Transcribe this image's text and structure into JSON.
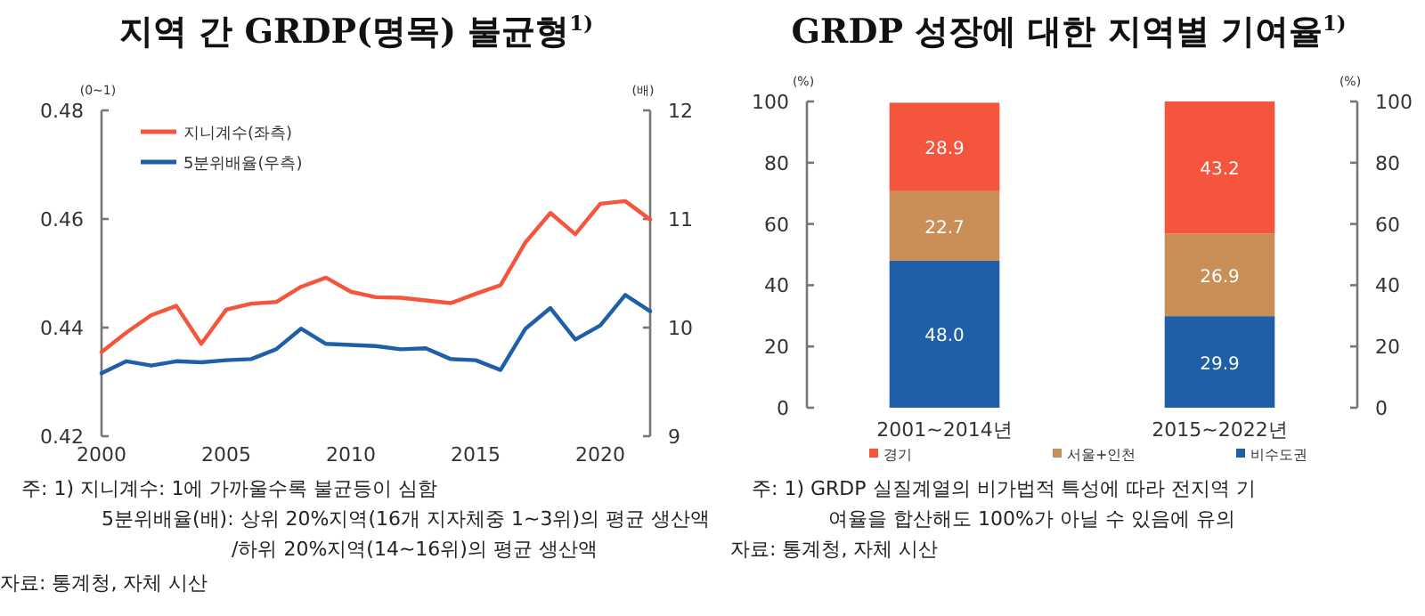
{
  "chart_data": [
    {
      "type": "line",
      "title": "지역 간 GRDP(명목) 불균형$^{1)}$",
      "ylabel": "(0~1)",
      "y2label": "(배)",
      "x": [
        2000,
        2001,
        2002,
        2003,
        2004,
        2005,
        2006,
        2007,
        2008,
        2009,
        2010,
        2011,
        2012,
        2013,
        2014,
        2015,
        2016,
        2017,
        2018,
        2019,
        2020,
        2021,
        2022
      ],
      "series": [
        {
          "name": "지니계수(좌측)",
          "color": "#f5553c",
          "values": [
            0.4355,
            0.4391,
            0.4423,
            0.444,
            0.437,
            0.4433,
            0.4444,
            0.4447,
            0.4475,
            0.4492,
            0.4466,
            0.4456,
            0.4455,
            0.445,
            0.4445,
            0.4462,
            0.4478,
            0.4557,
            0.4611,
            0.4572,
            0.4628,
            0.4633,
            0.4599
          ]
        },
        {
          "name": "5분위배율(우측)",
          "color": "#1f5fa8",
          "axis": "y2",
          "values": [
            9.58,
            9.69,
            9.65,
            9.69,
            9.68,
            9.7,
            9.71,
            9.8,
            9.99,
            9.85,
            9.84,
            9.83,
            9.8,
            9.81,
            9.71,
            9.7,
            9.61,
            9.99,
            10.18,
            9.89,
            10.02,
            10.3,
            10.15
          ]
        }
      ],
      "xlim": [
        2000,
        2022
      ],
      "xticks": [
        2000,
        2005,
        2010,
        2015,
        2020
      ],
      "ylim": [
        0.42,
        0.48
      ],
      "yticks": [
        0.42,
        0.44,
        0.46,
        0.48
      ],
      "y2lim": [
        9,
        12
      ],
      "y2ticks": [
        9,
        10,
        11,
        12
      ],
      "legend": "top left",
      "grid": false,
      "line_style": "solid",
      "annotations": [
        "주: 1) 지니계수: 1에 가까울수록 불균등이 심함",
        "5분위배율(배): 상위 20%지역(16개 지자체중 1~3위)의 평균 생산액",
        "/하위 20%지역(14~16위)의 평균 생산액",
        "자료: 통계청, 자체 시산"
      ]
    },
    {
      "type": "bar",
      "title": "GRDP 성장에 대한 지역별 기여율$^{1)}$",
      "ylabel": "(%)",
      "y2label": "(%)",
      "categories": [
        "2001~2014년",
        "2015~2022년"
      ],
      "stacked": true,
      "series": [
        {
          "name": "비수도권",
          "color": "#1f5fa8",
          "values": [
            48.0,
            29.9
          ],
          "value_labels": [
            "48.0",
            "29.9"
          ]
        },
        {
          "name": "서울+인천",
          "color": "#c98f56",
          "values": [
            22.7,
            26.9
          ],
          "value_labels": [
            "22.7",
            "26.9"
          ]
        },
        {
          "name": "경기",
          "color": "#f5553c",
          "values": [
            28.9,
            43.2
          ],
          "value_labels": [
            "28.9",
            "43.2"
          ]
        }
      ],
      "ylim": [
        0,
        100
      ],
      "yticks": [
        0,
        20,
        40,
        60,
        80,
        100
      ],
      "y2lim": [
        0,
        100
      ],
      "y2ticks": [
        0,
        20,
        40,
        60,
        80,
        100
      ],
      "legend": "bottom",
      "annotations": [
        "주: 1) GRDP 실질계열의 비가법적 특성에 따라 전지역 기",
        "여율을 합산해도 100%가 아닐 수 있음에 유의",
        "자료: 통계청, 자체 시산"
      ]
    }
  ]
}
